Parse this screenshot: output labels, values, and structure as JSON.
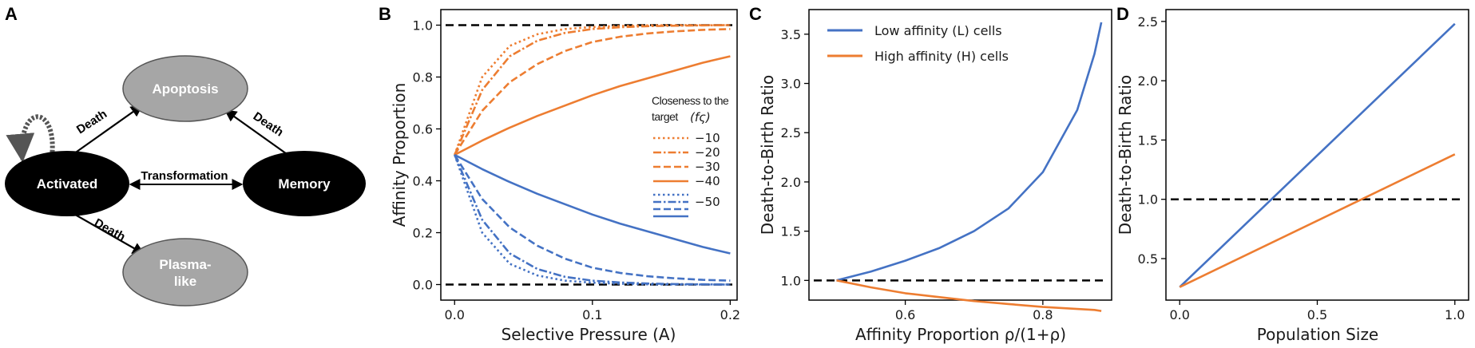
{
  "panel_labels": {
    "a": "A",
    "b": "B",
    "c": "C",
    "d": "D"
  },
  "colors": {
    "blue": "#4472c4",
    "orange": "#ed7d31",
    "ref": "#000000",
    "gray_node": "#a6a6a6",
    "black_node": "#000000"
  },
  "diagram": {
    "nodes": {
      "apoptosis": "Apoptosis",
      "activated": "Activated",
      "memory": "Memory",
      "plasma_line1": "Plasma-",
      "plasma_line2": "like"
    },
    "edges": {
      "death_left": "Death",
      "death_right": "Death",
      "transformation": "Transformation",
      "death_bottom": "Death"
    }
  },
  "chart_data": [
    {
      "panel": "B",
      "type": "line",
      "xlabel": "Selective Pressure (A)",
      "ylabel": "Affinity Proportion",
      "xlim": [
        -0.01,
        0.205
      ],
      "ylim": [
        -0.06,
        1.06
      ],
      "xticks": [
        0.0,
        0.1,
        0.2
      ],
      "xtick_labels": [
        "0.0",
        "0.1",
        "0.2"
      ],
      "yticks": [
        0.0,
        0.2,
        0.4,
        0.6,
        0.8,
        1.0
      ],
      "ytick_labels": [
        "0.0",
        "0.2",
        "0.4",
        "0.6",
        "0.8",
        "1.0"
      ],
      "x": [
        0.0,
        0.02,
        0.04,
        0.06,
        0.08,
        0.1,
        0.12,
        0.14,
        0.16,
        0.18,
        0.2
      ],
      "reference_lines": [
        {
          "y": 1.0,
          "style": "dashed"
        },
        {
          "y": 0.0,
          "style": "dashed"
        }
      ],
      "legend": {
        "title_line1": "Closeness to the",
        "title_line2": "target",
        "title_symbol": "(fς)",
        "entries": [
          {
            "label": "−10",
            "style": "dotted"
          },
          {
            "label": "−20",
            "style": "dashdot"
          },
          {
            "label": "−30",
            "style": "dashed"
          },
          {
            "label": "−40",
            "style": "solid"
          },
          {
            "label": "−50",
            "style": "blue-group"
          }
        ]
      },
      "series": [
        {
          "name": "High affinity, -10",
          "color": "orange",
          "style": "dotted",
          "values": [
            0.5,
            0.8,
            0.92,
            0.965,
            0.985,
            0.993,
            0.997,
            0.999,
            1.0,
            1.0,
            1.0
          ]
        },
        {
          "name": "High affinity, -20",
          "color": "orange",
          "style": "dashdot",
          "values": [
            0.5,
            0.75,
            0.88,
            0.94,
            0.97,
            0.985,
            0.992,
            0.996,
            0.998,
            0.999,
            1.0
          ]
        },
        {
          "name": "High affinity, -30",
          "color": "orange",
          "style": "dashed",
          "values": [
            0.5,
            0.67,
            0.78,
            0.85,
            0.9,
            0.935,
            0.955,
            0.968,
            0.976,
            0.982,
            0.985
          ]
        },
        {
          "name": "High affinity, -40",
          "color": "orange",
          "style": "solid",
          "values": [
            0.5,
            0.555,
            0.605,
            0.65,
            0.69,
            0.73,
            0.765,
            0.795,
            0.825,
            0.855,
            0.88
          ]
        },
        {
          "name": "Low affinity, -10",
          "color": "blue",
          "style": "dotted",
          "values": [
            0.5,
            0.2,
            0.08,
            0.035,
            0.015,
            0.007,
            0.003,
            0.001,
            0.0,
            0.0,
            0.0
          ]
        },
        {
          "name": "Low affinity, -20",
          "color": "blue",
          "style": "dashdot",
          "values": [
            0.5,
            0.25,
            0.12,
            0.06,
            0.03,
            0.015,
            0.008,
            0.004,
            0.002,
            0.001,
            0.0
          ]
        },
        {
          "name": "Low affinity, -30",
          "color": "blue",
          "style": "dashed",
          "values": [
            0.5,
            0.33,
            0.22,
            0.15,
            0.1,
            0.065,
            0.045,
            0.032,
            0.024,
            0.018,
            0.015
          ]
        },
        {
          "name": "Low affinity, -40",
          "color": "blue",
          "style": "solid",
          "values": [
            0.5,
            0.445,
            0.395,
            0.35,
            0.31,
            0.27,
            0.235,
            0.205,
            0.175,
            0.145,
            0.12
          ]
        }
      ]
    },
    {
      "panel": "C",
      "type": "line",
      "xlabel": "Affinity Proportion ρ/(1+ρ)",
      "ylabel": "Death-to-Birth Ratio",
      "xlim": [
        0.46,
        0.9
      ],
      "ylim": [
        0.8,
        3.75
      ],
      "xticks": [
        0.6,
        0.8
      ],
      "xtick_labels": [
        "0.6",
        "0.8"
      ],
      "yticks": [
        1.0,
        1.5,
        2.0,
        2.5,
        3.0,
        3.5
      ],
      "ytick_labels": [
        "1.0",
        "1.5",
        "2.0",
        "2.5",
        "3.0",
        "3.5"
      ],
      "x": [
        0.5,
        0.55,
        0.6,
        0.65,
        0.7,
        0.75,
        0.8,
        0.85,
        0.875,
        0.885
      ],
      "reference_lines": [
        {
          "y": 1.0,
          "style": "dashed"
        }
      ],
      "legend_position": "top-left",
      "series": [
        {
          "name": "Low affinity (L) cells",
          "color": "blue",
          "style": "solid",
          "values": [
            1.0,
            1.09,
            1.2,
            1.33,
            1.5,
            1.73,
            2.1,
            2.73,
            3.3,
            3.62
          ]
        },
        {
          "name": "High affinity (H) cells",
          "color": "orange",
          "style": "solid",
          "values": [
            1.0,
            0.93,
            0.87,
            0.83,
            0.79,
            0.76,
            0.73,
            0.71,
            0.7,
            0.69
          ]
        }
      ]
    },
    {
      "panel": "D",
      "type": "line",
      "xlabel": "Population Size",
      "ylabel": "Death-to-Birth Ratio",
      "xlim": [
        -0.05,
        1.05
      ],
      "ylim": [
        0.15,
        2.6
      ],
      "xticks": [
        0.0,
        0.5,
        1.0
      ],
      "xtick_labels": [
        "0.0",
        "0.5",
        "1.0"
      ],
      "yticks": [
        0.5,
        1.0,
        1.5,
        2.0,
        2.5
      ],
      "ytick_labels": [
        "0.5",
        "1.0",
        "1.5",
        "2.0",
        "2.5"
      ],
      "x": [
        0.0,
        1.0
      ],
      "reference_lines": [
        {
          "y": 1.0,
          "style": "dashed"
        }
      ],
      "series": [
        {
          "name": "Low affinity (L) cells",
          "color": "blue",
          "style": "solid",
          "values": [
            0.26,
            2.48
          ]
        },
        {
          "name": "High affinity (H) cells",
          "color": "orange",
          "style": "solid",
          "values": [
            0.26,
            1.38
          ]
        }
      ]
    }
  ]
}
